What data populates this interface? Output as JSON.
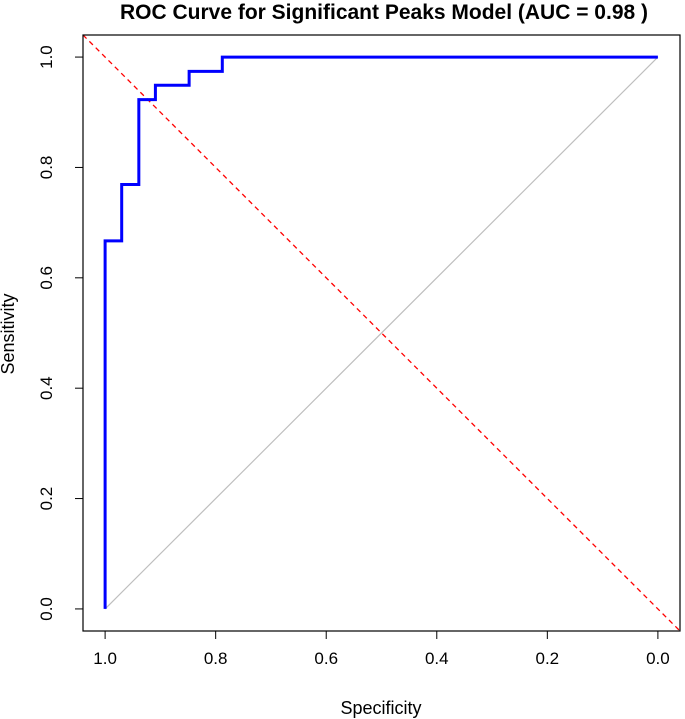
{
  "chart_data": {
    "type": "line",
    "title": "ROC Curve for Significant Peaks Model (AUC = 0.98 )",
    "xlabel": "Specificity",
    "ylabel": "Sensitivity",
    "xlim": [
      1.04,
      -0.04
    ],
    "ylim": [
      -0.04,
      1.04
    ],
    "x_reversed": true,
    "xticks": [
      "1.0",
      "0.8",
      "0.6",
      "0.4",
      "0.2",
      "0.0"
    ],
    "yticks": [
      "0.0",
      "0.2",
      "0.4",
      "0.6",
      "0.8",
      "1.0"
    ],
    "grid": false,
    "series": [
      {
        "style": "roc-curve",
        "color": "#0000ff",
        "points": [
          [
            1.0,
            0.0
          ],
          [
            1.0,
            0.667
          ],
          [
            0.97,
            0.667
          ],
          [
            0.97,
            0.769
          ],
          [
            0.939,
            0.769
          ],
          [
            0.939,
            0.923
          ],
          [
            0.909,
            0.923
          ],
          [
            0.909,
            0.949
          ],
          [
            0.848,
            0.949
          ],
          [
            0.848,
            0.974
          ],
          [
            0.788,
            0.974
          ],
          [
            0.788,
            1.0
          ],
          [
            0.0,
            1.0
          ]
        ]
      },
      {
        "style": "reference-diagonal",
        "color": "#bebebe",
        "points": [
          [
            1.0,
            0.0
          ],
          [
            0.0,
            1.0
          ]
        ]
      },
      {
        "style": "dashed-reference",
        "color": "#ff0000",
        "points": [
          [
            1.04,
            1.04
          ],
          [
            -0.04,
            -0.04
          ]
        ]
      }
    ]
  }
}
